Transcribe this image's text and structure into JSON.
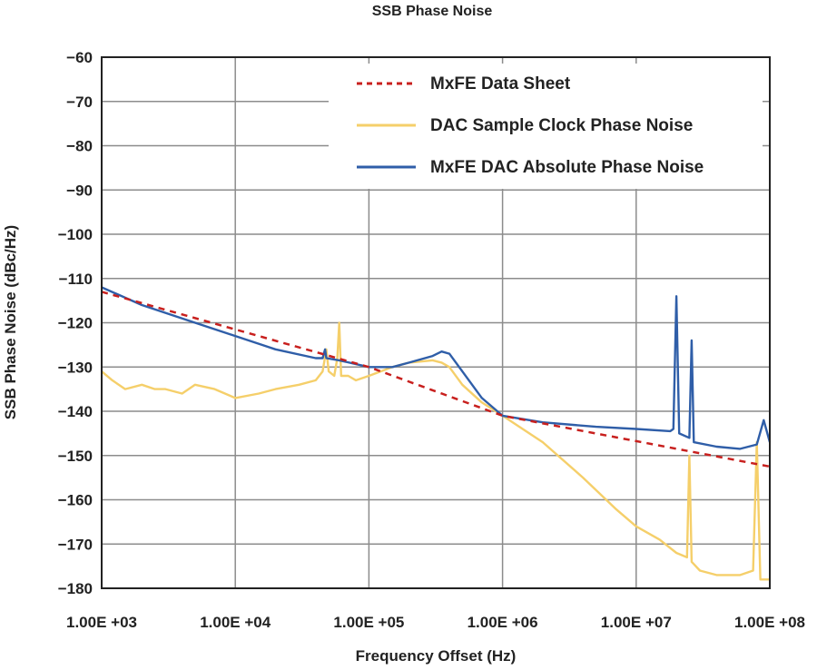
{
  "chart_data": {
    "type": "line",
    "title": "SSB Phase Noise",
    "xlabel": "Frequency Offset (Hz)",
    "ylabel": "SSB Phase Noise (dBc/Hz)",
    "x_scale": "log",
    "xlim": [
      1000,
      100000000
    ],
    "ylim": [
      -180,
      -60
    ],
    "grid": true,
    "legend_position": "top-right",
    "x_ticks": [
      {
        "value": 1000,
        "label": "1.00E +03"
      },
      {
        "value": 10000,
        "label": "1.00E +04"
      },
      {
        "value": 100000,
        "label": "1.00E +05"
      },
      {
        "value": 1000000,
        "label": "1.00E +06"
      },
      {
        "value": 10000000,
        "label": "1.00E +07"
      },
      {
        "value": 100000000,
        "label": "1.00E +08"
      }
    ],
    "y_ticks": [
      {
        "value": -60,
        "label": "−60"
      },
      {
        "value": -70,
        "label": "−70"
      },
      {
        "value": -80,
        "label": "−80"
      },
      {
        "value": -90,
        "label": "−90"
      },
      {
        "value": -100,
        "label": "−100"
      },
      {
        "value": -110,
        "label": "−110"
      },
      {
        "value": -120,
        "label": "−120"
      },
      {
        "value": -130,
        "label": "−130"
      },
      {
        "value": -140,
        "label": "−140"
      },
      {
        "value": -150,
        "label": "−150"
      },
      {
        "value": -160,
        "label": "−160"
      },
      {
        "value": -170,
        "label": "−170"
      },
      {
        "value": -180,
        "label": "−180"
      }
    ],
    "series": [
      {
        "name": "MxFE Data Sheet",
        "color": "#c8201e",
        "style": "dashed",
        "points": [
          [
            1000,
            -113
          ],
          [
            100000,
            -130
          ],
          [
            1000000,
            -141
          ],
          [
            100000000,
            -152.5
          ]
        ]
      },
      {
        "name": "DAC Sample Clock Phase Noise",
        "color": "#f5cf6a",
        "style": "solid",
        "points": [
          [
            1000,
            -131
          ],
          [
            1200,
            -133
          ],
          [
            1500,
            -135
          ],
          [
            2000,
            -134
          ],
          [
            2500,
            -135
          ],
          [
            3000,
            -135
          ],
          [
            4000,
            -136
          ],
          [
            5000,
            -134
          ],
          [
            7000,
            -135
          ],
          [
            10000,
            -137
          ],
          [
            15000,
            -136
          ],
          [
            20000,
            -135
          ],
          [
            30000,
            -134
          ],
          [
            40000,
            -133
          ],
          [
            45000,
            -131
          ],
          [
            48000,
            -126
          ],
          [
            50000,
            -131
          ],
          [
            55000,
            -132
          ],
          [
            58000,
            -128
          ],
          [
            60000,
            -120
          ],
          [
            62000,
            -132
          ],
          [
            70000,
            -132
          ],
          [
            80000,
            -133
          ],
          [
            100000,
            -132
          ],
          [
            150000,
            -130
          ],
          [
            200000,
            -129
          ],
          [
            300000,
            -128.5
          ],
          [
            350000,
            -129
          ],
          [
            400000,
            -130
          ],
          [
            500000,
            -134
          ],
          [
            700000,
            -138
          ],
          [
            1000000,
            -141
          ],
          [
            2000000,
            -147
          ],
          [
            4000000,
            -155
          ],
          [
            7000000,
            -162
          ],
          [
            10000000,
            -166
          ],
          [
            15000000,
            -169
          ],
          [
            20000000,
            -172
          ],
          [
            24000000,
            -173
          ],
          [
            25000000,
            -150
          ],
          [
            26000000,
            -174
          ],
          [
            30000000,
            -176
          ],
          [
            40000000,
            -177
          ],
          [
            60000000,
            -177
          ],
          [
            75000000,
            -176
          ],
          [
            80000000,
            -147
          ],
          [
            85000000,
            -178
          ],
          [
            100000000,
            -178
          ]
        ]
      },
      {
        "name": "MxFE DAC Absolute Phase Noise",
        "color": "#2f5ea8",
        "style": "solid",
        "points": [
          [
            1000,
            -112
          ],
          [
            2000,
            -116
          ],
          [
            5000,
            -120
          ],
          [
            10000,
            -123
          ],
          [
            20000,
            -126
          ],
          [
            40000,
            -128
          ],
          [
            45000,
            -128
          ],
          [
            47000,
            -126
          ],
          [
            48000,
            -128
          ],
          [
            60000,
            -128.5
          ],
          [
            100000,
            -130
          ],
          [
            150000,
            -130
          ],
          [
            200000,
            -129
          ],
          [
            300000,
            -127.5
          ],
          [
            350000,
            -126.5
          ],
          [
            400000,
            -127
          ],
          [
            500000,
            -131
          ],
          [
            700000,
            -137
          ],
          [
            1000000,
            -141
          ],
          [
            2000000,
            -142.5
          ],
          [
            5000000,
            -143.5
          ],
          [
            10000000,
            -144
          ],
          [
            18000000,
            -144.5
          ],
          [
            19000000,
            -144
          ],
          [
            20000000,
            -114
          ],
          [
            21000000,
            -145
          ],
          [
            25000000,
            -146
          ],
          [
            26000000,
            -124
          ],
          [
            27000000,
            -147
          ],
          [
            40000000,
            -148
          ],
          [
            60000000,
            -148.5
          ],
          [
            80000000,
            -147.5
          ],
          [
            90000000,
            -142
          ],
          [
            100000000,
            -147
          ]
        ]
      }
    ]
  }
}
